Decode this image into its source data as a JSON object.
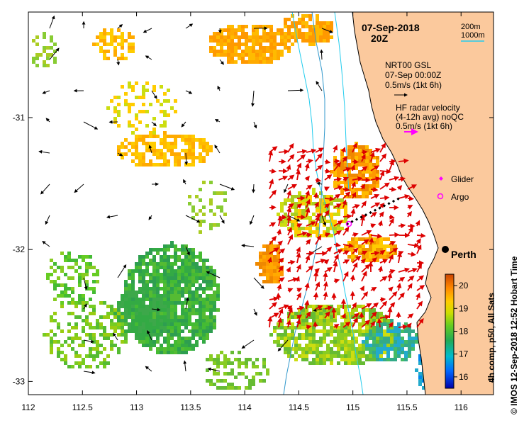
{
  "map": {
    "date": "07-Sep-2018",
    "time": "20Z",
    "credit": "© IMOS 12-Sep-2018 12:52 Hobart Time",
    "x_ticks": [
      "112",
      "112.5",
      "113",
      "113.5",
      "114",
      "114.5",
      "115",
      "115.5",
      "116"
    ],
    "y_ticks": [
      "-31",
      "-32",
      "-33"
    ],
    "lon_range": [
      112,
      116.3
    ],
    "lat_range": [
      -33.1,
      -30.2
    ]
  },
  "legend": {
    "isobath_200": "200m",
    "isobath_1000": "1000m",
    "gsl_title": "NRT00 GSL",
    "gsl_date": "07-Sep 00:00Z",
    "gsl_scale": "0.5m/s (1kt 6h)",
    "radar_title": "HF radar velocity",
    "radar_sub": "(4-12h avg) noQC",
    "radar_scale": "0.5m/s (1kt 6h)",
    "glider": "Glider",
    "argo": "Argo"
  },
  "places": {
    "perth": "Perth"
  },
  "colorbar": {
    "label": "4h comp, p50, All Sats",
    "ticks": [
      "16",
      "17",
      "18",
      "19",
      "20"
    ],
    "range": [
      15.5,
      20.5
    ]
  },
  "colors": {
    "land": "#fbc99d",
    "isobath_200": "#22ccee",
    "isobath_1000": "#3399cc",
    "radar_arrow": "#dd0000",
    "glider": "#ff00ff",
    "argo": "#ff00ff"
  }
}
